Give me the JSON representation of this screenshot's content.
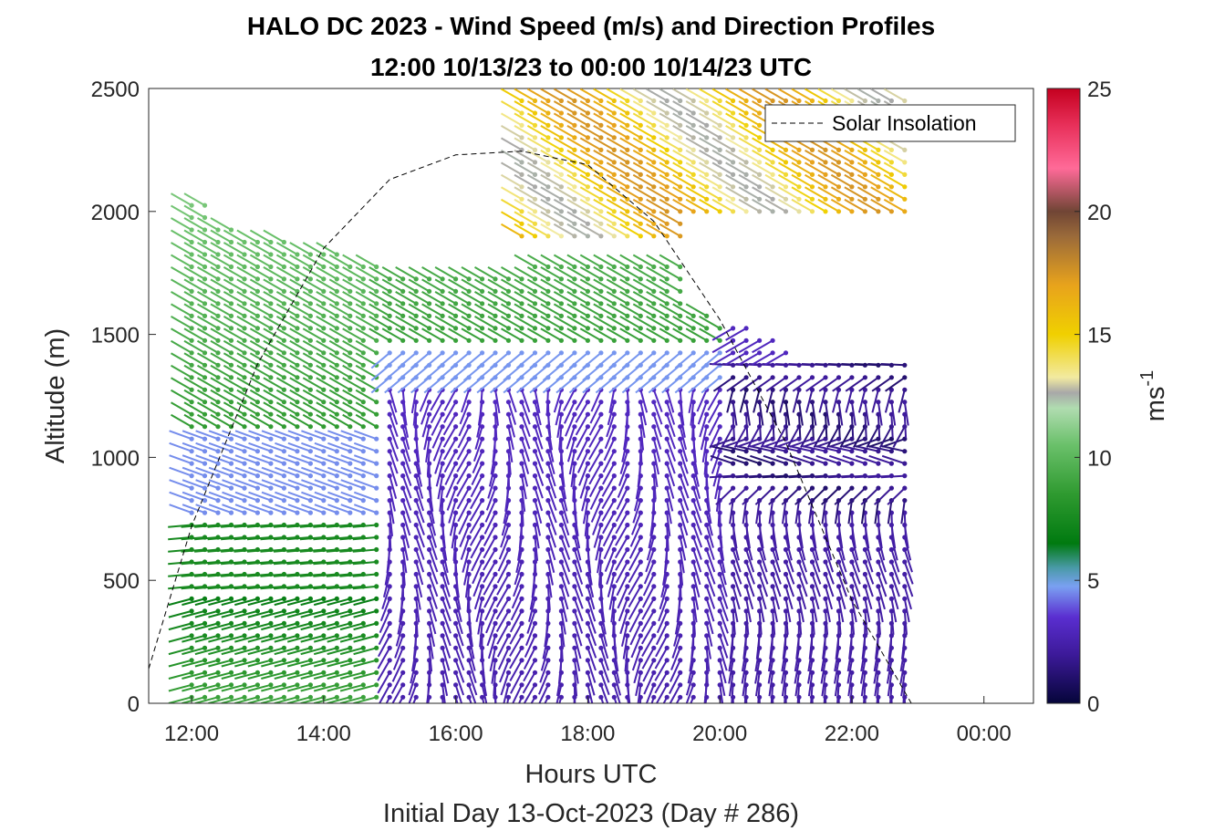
{
  "chart_data": {
    "type": "wind-barb-profile",
    "title": "HALO DC 2023 - Wind Speed (m/s) and Direction Profiles",
    "subtitle": "12:00 10/13/23 to 00:00 10/14/23  UTC",
    "xlabel": "Hours UTC",
    "ylabel": "Altitude (m)",
    "footer": "Initial Day 13-Oct-2023 (Day # 286)",
    "x_ticks": [
      "12:00",
      "14:00",
      "16:00",
      "18:00",
      "20:00",
      "22:00",
      "00:00"
    ],
    "x_tick_hours": [
      12,
      14,
      16,
      18,
      20,
      22,
      24
    ],
    "xlim_hours": [
      11.35,
      24.75
    ],
    "y_ticks": [
      0,
      500,
      1000,
      1500,
      2000,
      2500
    ],
    "ylim": [
      0,
      2500
    ],
    "colorbar": {
      "label": "ms",
      "label_superscript": "-1",
      "ticks": [
        0,
        5,
        10,
        15,
        20,
        25
      ],
      "range": [
        0,
        25
      ]
    },
    "legend": {
      "entries": [
        "Solar Insolation"
      ],
      "placement": "top-right"
    },
    "series": [
      {
        "name": "Solar Insolation",
        "style": "dashed-black",
        "hours": [
          11.35,
          12,
          13,
          14,
          15,
          16,
          17,
          18,
          19,
          20,
          21,
          22,
          22.9,
          23,
          24.75
        ],
        "altitude": [
          140,
          720,
          1380,
          1850,
          2130,
          2230,
          2245,
          2190,
          1960,
          1560,
          1060,
          420,
          0,
          0,
          0
        ]
      }
    ],
    "wind_profile_summary": [
      {
        "hours": [
          12,
          14
        ],
        "altitude": [
          0,
          500
        ],
        "speed_ms": 9,
        "direction_deg": 250
      },
      {
        "hours": [
          12,
          16
        ],
        "altitude": [
          1000,
          1800
        ],
        "speed_ms": 9,
        "direction_deg": 300
      },
      {
        "hours": [
          15,
          23
        ],
        "altitude": [
          0,
          1300
        ],
        "speed_ms": 2.5,
        "direction_deg": 180
      },
      {
        "hours": [
          17,
          23
        ],
        "altitude": [
          1900,
          2500
        ],
        "speed_ms": 16,
        "direction_deg": 300
      },
      {
        "hours": [
          21,
          23
        ],
        "altitude": [
          900,
          1400
        ],
        "speed_ms": 1,
        "direction_deg": 240
      }
    ],
    "colors": {
      "low": "#0b0b3d",
      "purple": "#4b22b0",
      "blue": "#7fa7f0",
      "green": "#008000",
      "light_green": "#8ccf8c",
      "yellow": "#f0d000",
      "orange": "#e8a31c",
      "brown": "#8a5a35",
      "pink": "#ff5a8c",
      "high": "#c4001f"
    }
  }
}
